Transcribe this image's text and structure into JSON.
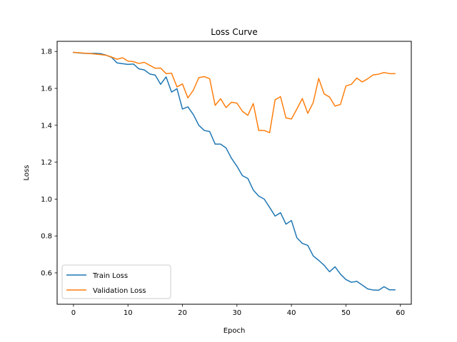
{
  "chart_data": {
    "type": "line",
    "title": "Loss Curve",
    "xlabel": "Epoch",
    "ylabel": "Loss",
    "xlim": [
      -3,
      62
    ],
    "ylim": [
      0.43,
      1.855
    ],
    "xticks": [
      0,
      10,
      20,
      30,
      40,
      50,
      60
    ],
    "yticks": [
      0.6,
      0.8,
      1.0,
      1.2,
      1.4,
      1.6,
      1.8
    ],
    "grid": false,
    "legend_position": "lower-left",
    "x": [
      0,
      1,
      2,
      3,
      4,
      5,
      6,
      7,
      8,
      9,
      10,
      11,
      12,
      13,
      14,
      15,
      16,
      17,
      18,
      19,
      20,
      21,
      22,
      23,
      24,
      25,
      26,
      27,
      28,
      29,
      30,
      31,
      32,
      33,
      34,
      35,
      36,
      37,
      38,
      39,
      40,
      41,
      42,
      43,
      44,
      45,
      46,
      47,
      48,
      49,
      50,
      51,
      52,
      53,
      54,
      55,
      56,
      57,
      58,
      59
    ],
    "series": [
      {
        "name": "Train Loss",
        "color": "#1f77b4",
        "values": [
          1.795,
          1.792,
          1.79,
          1.789,
          1.79,
          1.788,
          1.78,
          1.768,
          1.738,
          1.734,
          1.73,
          1.732,
          1.706,
          1.7,
          1.678,
          1.672,
          1.622,
          1.662,
          1.58,
          1.598,
          1.488,
          1.5,
          1.458,
          1.4,
          1.372,
          1.366,
          1.298,
          1.298,
          1.277,
          1.221,
          1.178,
          1.127,
          1.112,
          1.049,
          1.016,
          1.0,
          0.955,
          0.908,
          0.926,
          0.864,
          0.884,
          0.79,
          0.76,
          0.749,
          0.692,
          0.668,
          0.641,
          0.606,
          0.633,
          0.593,
          0.564,
          0.549,
          0.554,
          0.534,
          0.513,
          0.507,
          0.506,
          0.525,
          0.508,
          0.508
        ]
      },
      {
        "name": "Validation Loss",
        "color": "#ff7f0e",
        "values": [
          1.795,
          1.793,
          1.791,
          1.789,
          1.786,
          1.783,
          1.779,
          1.77,
          1.758,
          1.766,
          1.748,
          1.745,
          1.735,
          1.741,
          1.725,
          1.709,
          1.71,
          1.68,
          1.682,
          1.608,
          1.624,
          1.548,
          1.59,
          1.658,
          1.664,
          1.652,
          1.508,
          1.544,
          1.496,
          1.525,
          1.52,
          1.476,
          1.454,
          1.518,
          1.372,
          1.372,
          1.36,
          1.538,
          1.555,
          1.44,
          1.434,
          1.488,
          1.545,
          1.465,
          1.523,
          1.654,
          1.57,
          1.553,
          1.504,
          1.513,
          1.613,
          1.622,
          1.656,
          1.635,
          1.652,
          1.673,
          1.677,
          1.686,
          1.68,
          1.68
        ]
      }
    ]
  }
}
